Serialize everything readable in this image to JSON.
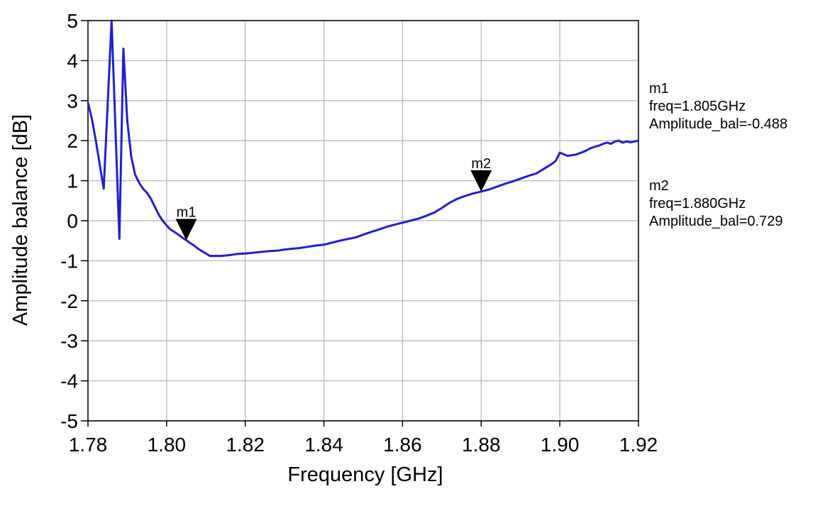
{
  "chart_data": {
    "type": "line",
    "title": "",
    "xlabel": "Frequency [GHz]",
    "ylabel": "Amplitude balance  [dB]",
    "xlim": [
      1.78,
      1.92
    ],
    "ylim": [
      -5,
      5
    ],
    "xticks": [
      1.78,
      1.8,
      1.82,
      1.84,
      1.86,
      1.88,
      1.9,
      1.92
    ],
    "xtick_labels": [
      "1.78",
      "1.80",
      "1.82",
      "1.84",
      "1.86",
      "1.88",
      "1.90",
      "1.92"
    ],
    "yticks": [
      5,
      4,
      3,
      2,
      1,
      0,
      -1,
      -2,
      -3,
      -4,
      -5
    ],
    "ytick_labels": [
      "5",
      "4",
      "3",
      "2",
      "1",
      "0",
      "-1",
      "-2",
      "-3",
      "-4",
      "-5"
    ],
    "grid": true,
    "line_color": "#1f1fd6",
    "series": [
      {
        "x": [
          1.78,
          1.781,
          1.782,
          1.783,
          1.784,
          1.786,
          1.788,
          1.789,
          1.79,
          1.791,
          1.792,
          1.793,
          1.794,
          1.795,
          1.796,
          1.797,
          1.798,
          1.799,
          1.8,
          1.801,
          1.802,
          1.803,
          1.804,
          1.805,
          1.806,
          1.807,
          1.808,
          1.809,
          1.81,
          1.811,
          1.812,
          1.814,
          1.816,
          1.818,
          1.82,
          1.822,
          1.824,
          1.826,
          1.828,
          1.83,
          1.832,
          1.834,
          1.836,
          1.838,
          1.84,
          1.842,
          1.844,
          1.846,
          1.848,
          1.85,
          1.852,
          1.854,
          1.856,
          1.858,
          1.86,
          1.862,
          1.864,
          1.866,
          1.868,
          1.87,
          1.872,
          1.874,
          1.876,
          1.878,
          1.88,
          1.882,
          1.884,
          1.886,
          1.888,
          1.89,
          1.892,
          1.894,
          1.896,
          1.898,
          1.899,
          1.9,
          1.902,
          1.904,
          1.906,
          1.908,
          1.91,
          1.911,
          1.912,
          1.913,
          1.914,
          1.915,
          1.916,
          1.917,
          1.918,
          1.92
        ],
        "y": [
          2.95,
          2.55,
          2.0,
          1.4,
          0.8,
          5.0,
          -0.45,
          4.3,
          2.5,
          1.6,
          1.15,
          0.95,
          0.8,
          0.7,
          0.55,
          0.35,
          0.15,
          0.0,
          -0.12,
          -0.22,
          -0.28,
          -0.35,
          -0.42,
          -0.488,
          -0.56,
          -0.62,
          -0.7,
          -0.76,
          -0.82,
          -0.88,
          -0.88,
          -0.88,
          -0.86,
          -0.83,
          -0.82,
          -0.8,
          -0.78,
          -0.76,
          -0.75,
          -0.72,
          -0.7,
          -0.68,
          -0.65,
          -0.62,
          -0.6,
          -0.55,
          -0.5,
          -0.46,
          -0.42,
          -0.35,
          -0.28,
          -0.22,
          -0.15,
          -0.1,
          -0.05,
          0.0,
          0.05,
          0.12,
          0.2,
          0.32,
          0.45,
          0.55,
          0.62,
          0.68,
          0.729,
          0.78,
          0.85,
          0.92,
          0.98,
          1.05,
          1.12,
          1.18,
          1.3,
          1.42,
          1.5,
          1.7,
          1.62,
          1.65,
          1.72,
          1.82,
          1.88,
          1.92,
          1.95,
          1.92,
          1.98,
          2.0,
          1.95,
          1.98,
          1.96,
          2.0
        ]
      }
    ],
    "markers": [
      {
        "label": "m1",
        "x": 1.805,
        "y": -0.488,
        "readout": [
          "m1",
          "freq=1.805GHz",
          "Amplitude_bal=-0.488"
        ]
      },
      {
        "label": "m2",
        "x": 1.88,
        "y": 0.729,
        "readout": [
          "m2",
          "freq=1.880GHz",
          "Amplitude_bal=0.729"
        ]
      }
    ]
  }
}
